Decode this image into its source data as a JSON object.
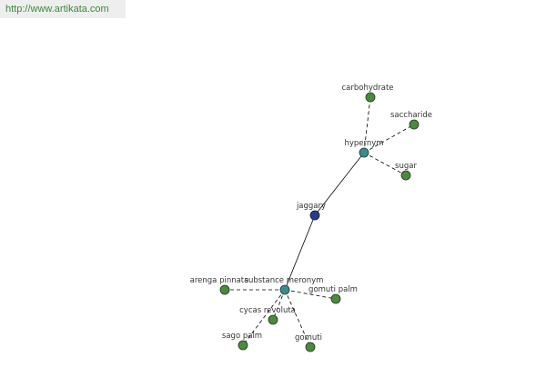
{
  "header": {
    "url": "http://www.artikata.com"
  },
  "nodes": [
    {
      "label": "jaggary"
    },
    {
      "label": "hypernym"
    },
    {
      "label": "substance meronym"
    },
    {
      "label": "carbohydrate"
    },
    {
      "label": "saccharide"
    },
    {
      "label": "sugar"
    },
    {
      "label": "arenga pinnata"
    },
    {
      "label": "gomuti palm"
    },
    {
      "label": "cycas revoluta"
    },
    {
      "label": "sago palm"
    },
    {
      "label": "gomuti"
    }
  ]
}
